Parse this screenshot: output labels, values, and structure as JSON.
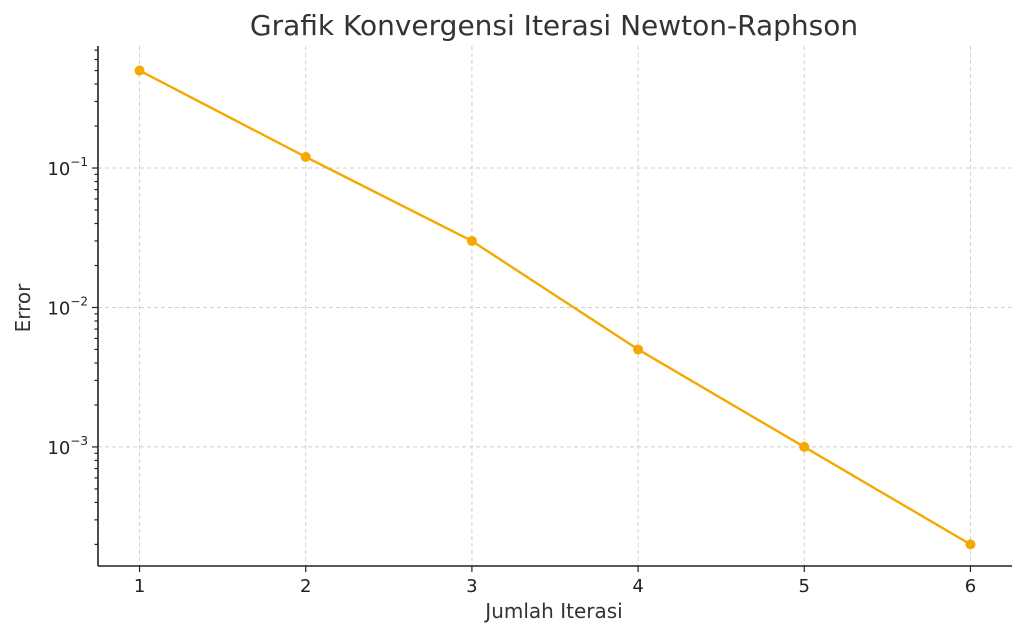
{
  "chart_data": {
    "type": "line",
    "title": "Grafik Konvergensi Iterasi Newton-Raphson",
    "xlabel": "Jumlah Iterasi",
    "ylabel": "Error",
    "x": [
      1,
      2,
      3,
      4,
      5,
      6
    ],
    "series": [
      {
        "values": [
          0.5,
          0.12,
          0.03,
          0.005,
          0.001,
          0.0002
        ]
      }
    ],
    "y_scale": "log",
    "xlim": [
      0.75,
      6.25
    ],
    "ylim": [
      0.00014,
      0.75
    ],
    "x_ticks": [
      "1",
      "2",
      "3",
      "4",
      "5",
      "6"
    ],
    "y_ticks": [
      {
        "value": 0.1,
        "base": "10",
        "exponent": "−1"
      },
      {
        "value": 0.01,
        "base": "10",
        "exponent": "−2"
      },
      {
        "value": 0.001,
        "base": "10",
        "exponent": "−3"
      }
    ],
    "grid": true,
    "line_color": "#F5A800",
    "marker": "circle"
  }
}
